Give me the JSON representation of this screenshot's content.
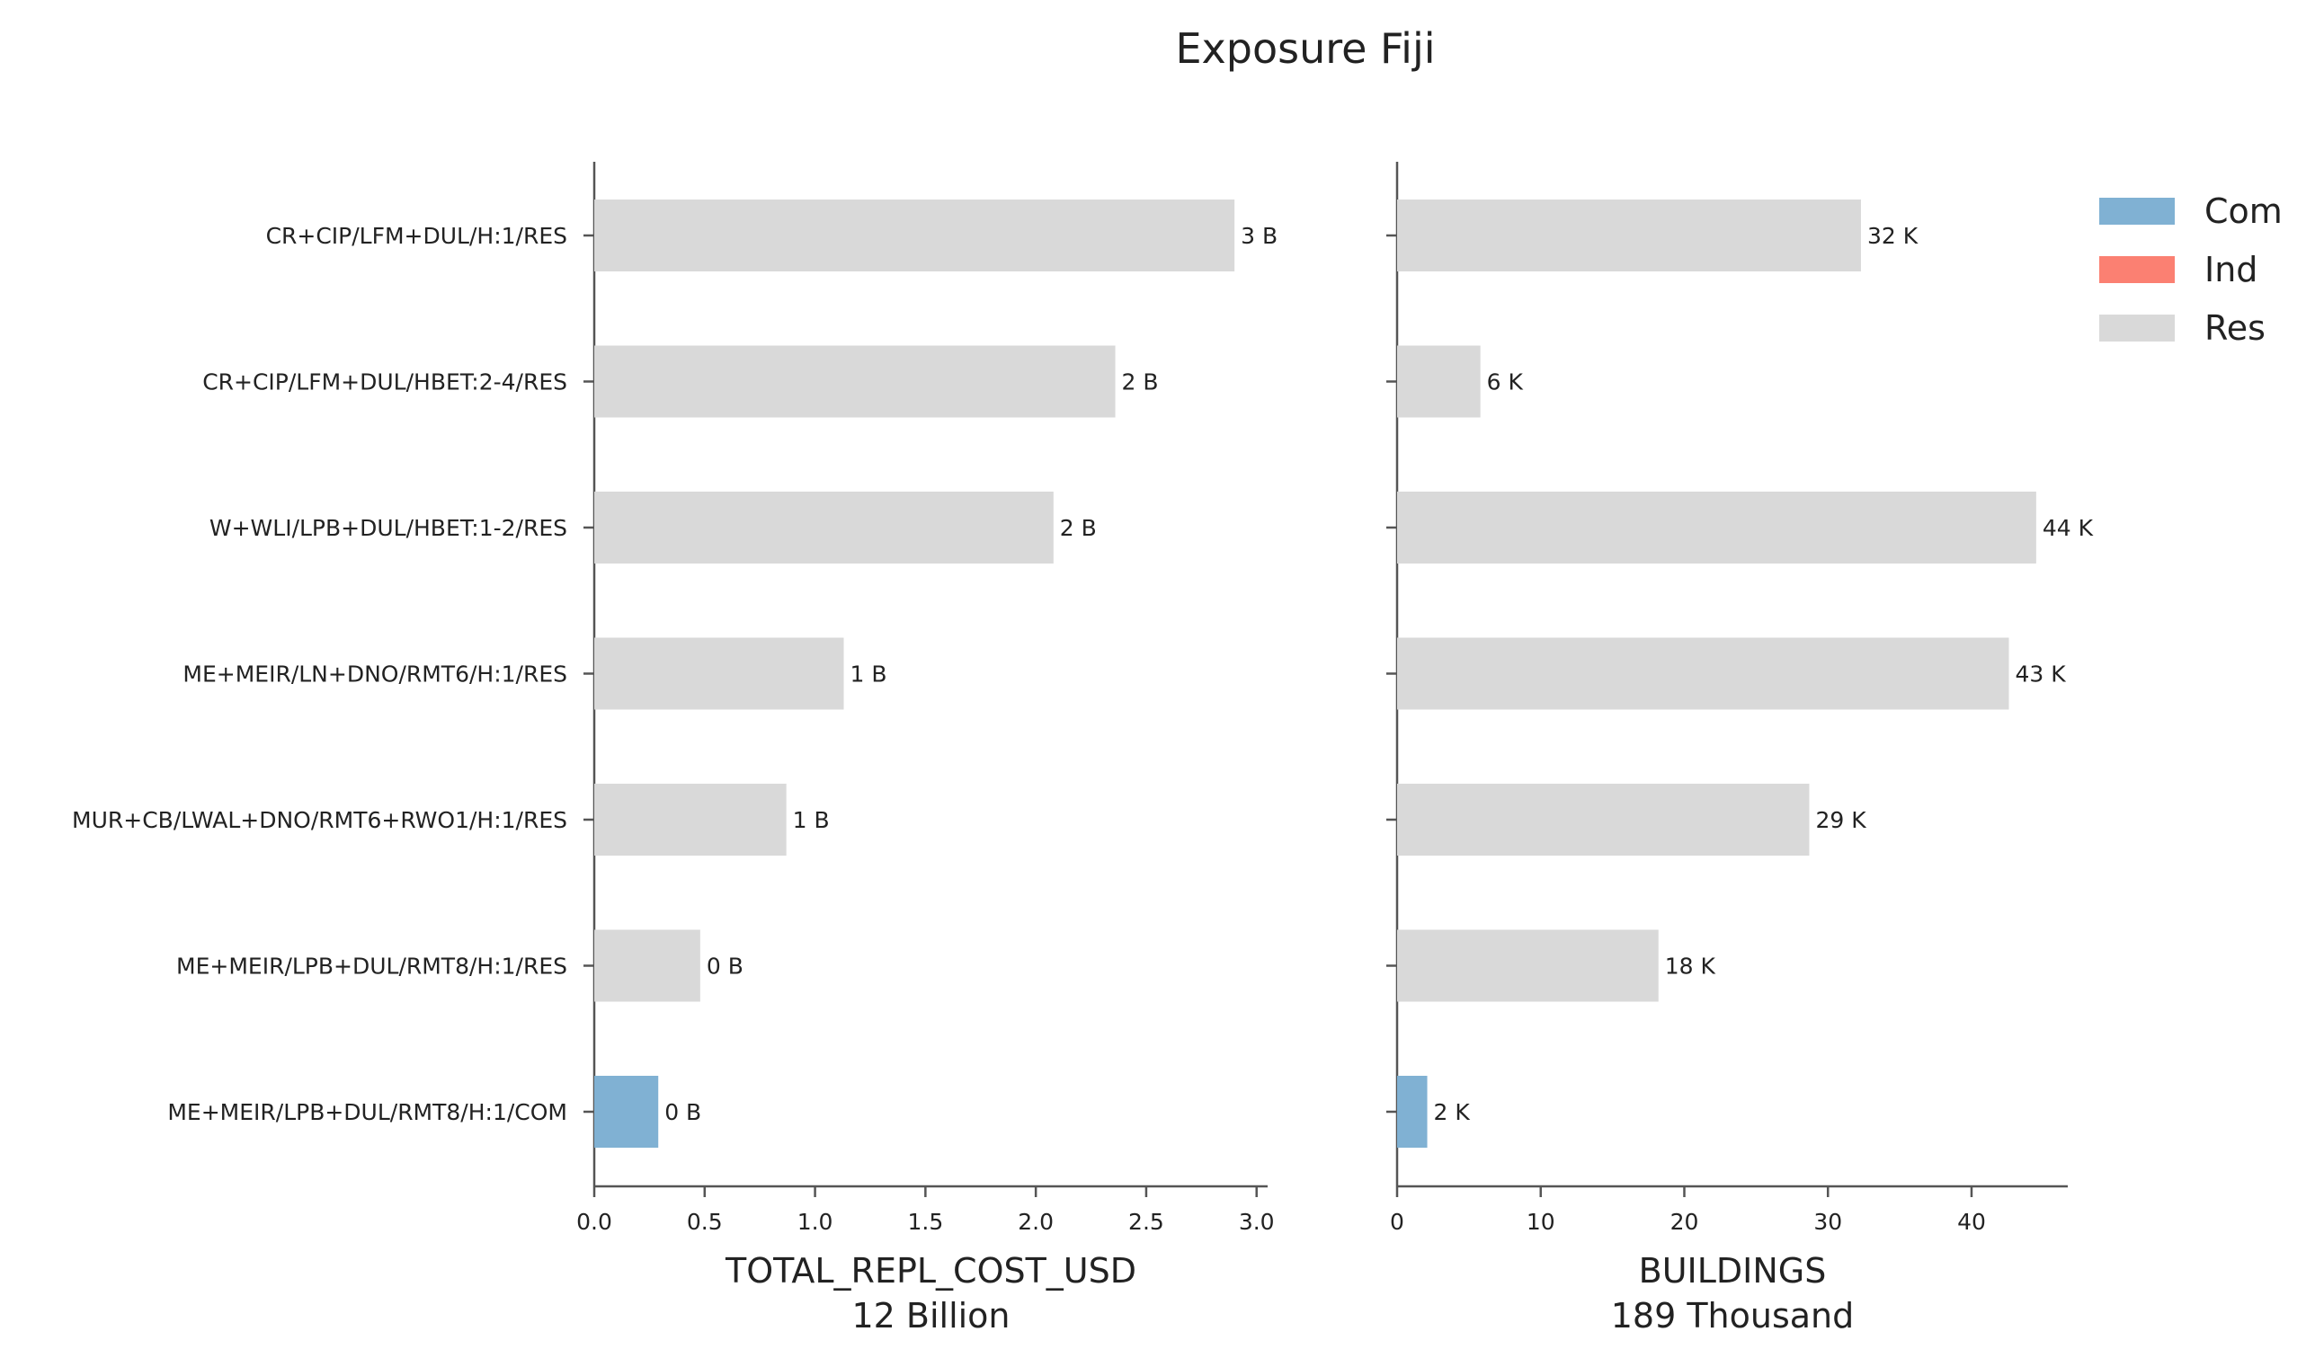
{
  "title": "Exposure Fiji",
  "colors": {
    "Com": "#80b1d3",
    "Ind": "#fb8072",
    "Res": "#d9d9d9"
  },
  "legend": {
    "placement": "top-right",
    "entries": [
      "Com",
      "Ind",
      "Res"
    ]
  },
  "chart_data": [
    {
      "type": "bar",
      "orientation": "horizontal",
      "categories": [
        "CR+CIP/LFM+DUL/H:1/RES",
        "CR+CIP/LFM+DUL/HBET:2-4/RES",
        "W+WLI/LPB+DUL/HBET:1-2/RES",
        "ME+MEIR/LN+DNO/RMT6/H:1/RES",
        "MUR+CB/LWAL+DNO/RMT6+RWO1/H:1/RES",
        "ME+MEIR/LPB+DUL/RMT8/H:1/RES",
        "ME+MEIR/LPB+DUL/RMT8/H:1/COM"
      ],
      "occupancy": [
        "Res",
        "Res",
        "Res",
        "Res",
        "Res",
        "Res",
        "Com"
      ],
      "values": [
        2.9,
        2.36,
        2.08,
        1.13,
        0.87,
        0.48,
        0.29
      ],
      "data_labels": [
        "3 B",
        "2 B",
        "2 B",
        "1 B",
        "1 B",
        "0 B",
        "0 B"
      ],
      "xlabel": "TOTAL_REPL_COST_USD",
      "xlabel2": "12 Billion",
      "xlim": [
        0,
        3.05
      ],
      "xticks": [
        0.0,
        0.5,
        1.0,
        1.5,
        2.0,
        2.5,
        3.0
      ],
      "xtick_labels": [
        "0.0",
        "0.5",
        "1.0",
        "1.5",
        "2.0",
        "2.5",
        "3.0"
      ],
      "grid": false
    },
    {
      "type": "bar",
      "orientation": "horizontal",
      "categories": [
        "CR+CIP/LFM+DUL/H:1/RES",
        "CR+CIP/LFM+DUL/HBET:2-4/RES",
        "W+WLI/LPB+DUL/HBET:1-2/RES",
        "ME+MEIR/LN+DNO/RMT6/H:1/RES",
        "MUR+CB/LWAL+DNO/RMT6+RWO1/H:1/RES",
        "ME+MEIR/LPB+DUL/RMT8/H:1/RES",
        "ME+MEIR/LPB+DUL/RMT8/H:1/COM"
      ],
      "occupancy": [
        "Res",
        "Res",
        "Res",
        "Res",
        "Res",
        "Res",
        "Com"
      ],
      "values": [
        32.3,
        5.8,
        44.5,
        42.6,
        28.7,
        18.2,
        2.1
      ],
      "data_labels": [
        "32 K",
        "6 K",
        "44 K",
        "43 K",
        "29 K",
        "18 K",
        "2 K"
      ],
      "xlabel": "BUILDINGS",
      "xlabel2": "189 Thousand",
      "xlim": [
        0,
        46.7
      ],
      "xticks": [
        0,
        10,
        20,
        30,
        40
      ],
      "xtick_labels": [
        "0",
        "10",
        "20",
        "30",
        "40"
      ],
      "grid": false
    }
  ]
}
